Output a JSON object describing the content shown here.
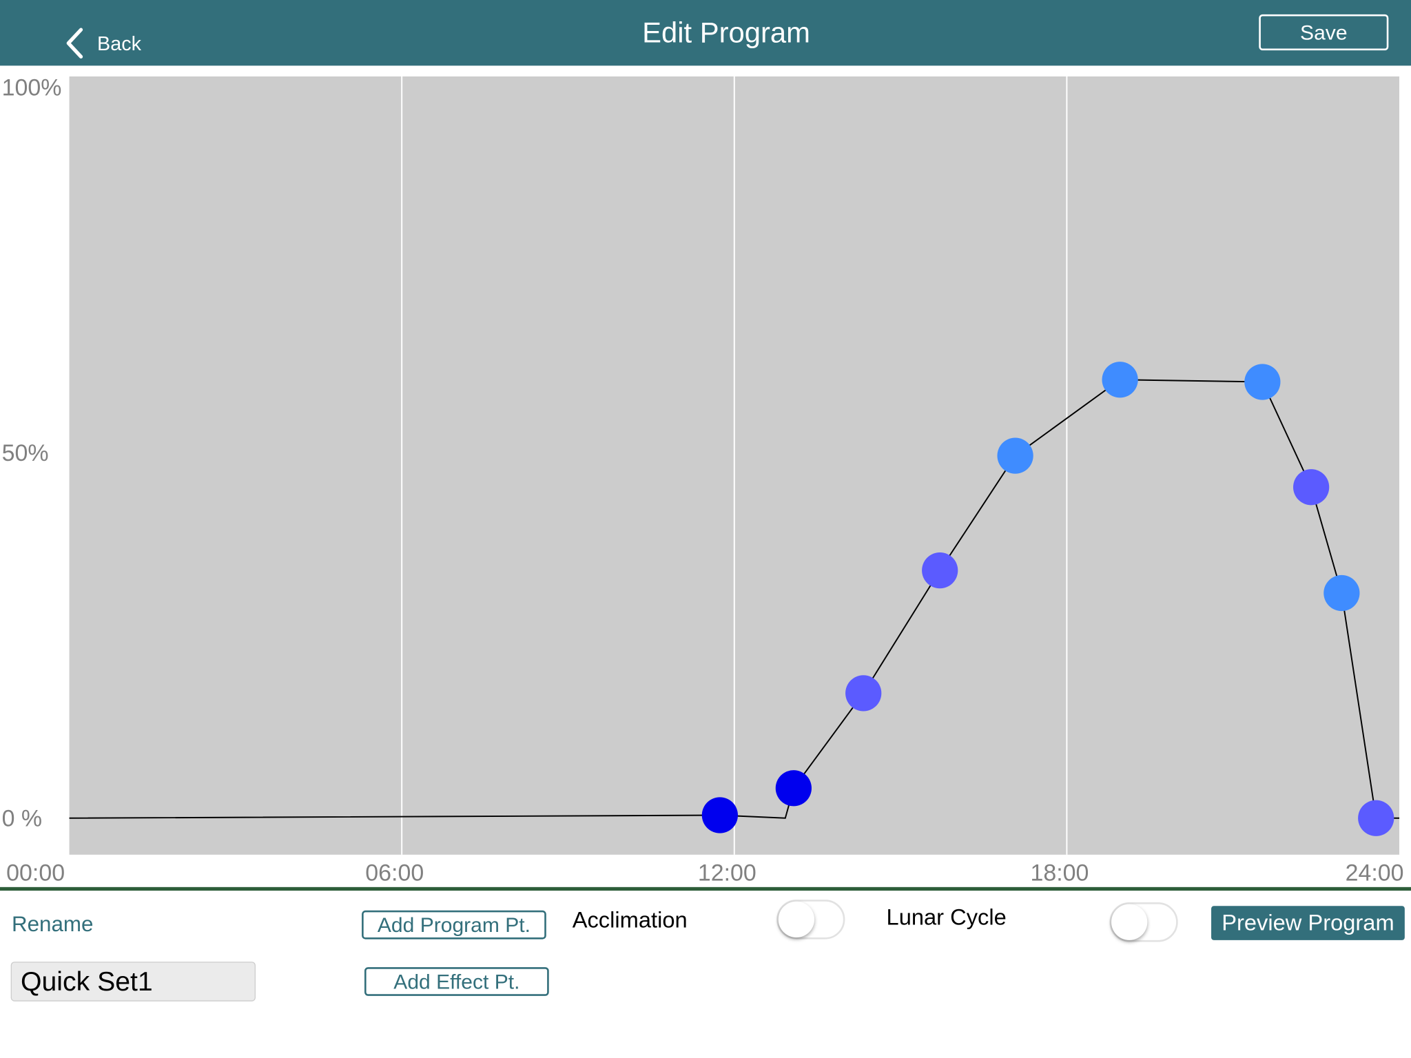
{
  "header": {
    "back": "Back",
    "title": "Edit Program",
    "save": "Save"
  },
  "chart_data": {
    "type": "line",
    "x": [
      0,
      11.74,
      12.92,
      13.07,
      14.33,
      15.71,
      17.07,
      18.96,
      21.53,
      22.41,
      22.96,
      23.58,
      24
    ],
    "series": [
      {
        "color": "#000000",
        "values": [
          0,
          0.4,
          0,
          4.1,
          17.1,
          33.9,
          49.6,
          60.0,
          59.7,
          45.3,
          30.8,
          0,
          0
        ],
        "marker_colors": [
          null,
          "#0000ee",
          null,
          "#0000ee",
          "#5b5bff",
          "#5b5bff",
          "#3f8cff",
          "#3f8cff",
          "#3f8cff",
          "#5b5bff",
          "#3f8cff",
          "#5b5bff",
          null
        ]
      }
    ],
    "xlim": [
      0,
      24
    ],
    "ylim": [
      -5,
      101.5
    ],
    "xticks": [
      {
        "value": 0,
        "label": "00:00"
      },
      {
        "value": 6,
        "label": "06:00"
      },
      {
        "value": 12,
        "label": "12:00"
      },
      {
        "value": 18,
        "label": "18:00"
      },
      {
        "value": 24,
        "label": "24:00"
      }
    ],
    "yticks": [
      {
        "value": 100,
        "label": "100%"
      },
      {
        "value": 50,
        "label": "50%"
      },
      {
        "value": 0,
        "label": "0 %"
      }
    ],
    "grid": "x",
    "plot_background": "#cccccc",
    "grid_color": "#ffffff"
  },
  "controls": {
    "rename": "Rename",
    "name": "Quick Set1",
    "add_program_point": "Add Program Pt.",
    "add_effect_point": "Add Effect Pt.",
    "acclimation": "Acclimation",
    "acclimation_on": false,
    "lunar_cycle": "Lunar Cycle",
    "lunar_cycle_on": false,
    "preview": "Preview Program"
  }
}
